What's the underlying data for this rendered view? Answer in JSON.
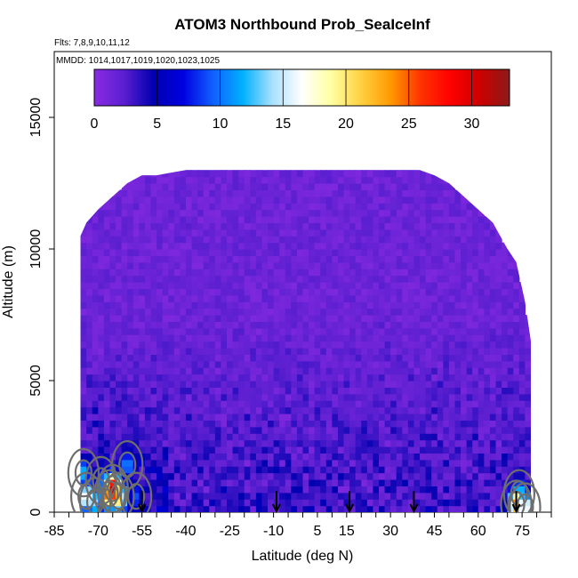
{
  "chart_data": {
    "type": "heatmap",
    "title": "ATOM3 Northbound Prob_SeaIceInf",
    "notes": [
      "Flts: 7,8,9,10,11,12",
      "MMDD: 1014,1017,1019,1020,1023,1025"
    ],
    "xlabel": "Latitude (deg N)",
    "ylabel": "Altitude (m)",
    "xlim": [
      -85,
      85
    ],
    "ylim": [
      0,
      17500
    ],
    "x_ticks": [
      -85,
      -80,
      -75,
      -70,
      -65,
      -60,
      -55,
      -50,
      -45,
      -40,
      -35,
      -30,
      -25,
      -20,
      -15,
      -10,
      -5,
      0,
      5,
      10,
      15,
      20,
      25,
      30,
      35,
      40,
      45,
      50,
      55,
      60,
      65,
      70,
      75,
      80,
      85
    ],
    "x_tick_labels": [
      "-85",
      "-70",
      "-55",
      "-40",
      "-25",
      "-10",
      "5",
      "15",
      "30",
      "45",
      "60",
      "75"
    ],
    "x_tick_label_values": [
      -85,
      -70,
      -55,
      -40,
      -25,
      -10,
      5,
      15,
      30,
      45,
      60,
      75
    ],
    "y_ticks": [
      0,
      5000,
      10000,
      15000
    ],
    "y_tick_labels": [
      "0",
      "5000",
      "10000",
      "15000"
    ],
    "colorbar": {
      "range": [
        0,
        33
      ],
      "ticks": [
        0,
        5,
        10,
        15,
        20,
        25,
        30
      ],
      "tick_labels": [
        "0",
        "5",
        "10",
        "15",
        "20",
        "25",
        "30"
      ],
      "colors": [
        "#8a2be2",
        "#5a1fd0",
        "#0000b0",
        "#0000e0",
        "#1060ff",
        "#00b0ff",
        "#a8e0ff",
        "#ffffff",
        "#ffffa0",
        "#ffd040",
        "#ff9900",
        "#ff3300",
        "#ff0000",
        "#cc0000",
        "#8b1a1a"
      ]
    },
    "coverage_top_m": [
      [
        -76,
        10500
      ],
      [
        -74,
        11000
      ],
      [
        -70,
        11500
      ],
      [
        -65,
        12000
      ],
      [
        -60,
        12500
      ],
      [
        -55,
        12800
      ],
      [
        -50,
        12800
      ],
      [
        -45,
        12900
      ],
      [
        -40,
        13000
      ],
      [
        -30,
        13000
      ],
      [
        -20,
        13000
      ],
      [
        -10,
        13000
      ],
      [
        0,
        13000
      ],
      [
        10,
        13000
      ],
      [
        20,
        13000
      ],
      [
        30,
        13000
      ],
      [
        40,
        13000
      ],
      [
        45,
        12800
      ],
      [
        50,
        12500
      ],
      [
        55,
        12000
      ],
      [
        60,
        11500
      ],
      [
        65,
        11000
      ],
      [
        70,
        10000
      ],
      [
        73,
        9500
      ],
      [
        76,
        8000
      ],
      [
        78,
        6500
      ]
    ],
    "high_values": [
      {
        "lat": -75,
        "alt": 1500,
        "value": 12
      },
      {
        "lat": -74,
        "alt": 600,
        "value": 18
      },
      {
        "lat": -71,
        "alt": 400,
        "value": 14
      },
      {
        "lat": -69,
        "alt": 1200,
        "value": 10
      },
      {
        "lat": -66,
        "alt": 700,
        "value": 27
      },
      {
        "lat": -65,
        "alt": 900,
        "value": 31
      },
      {
        "lat": -63,
        "alt": 600,
        "value": 22
      },
      {
        "lat": -60,
        "alt": 1800,
        "value": 11
      },
      {
        "lat": -57,
        "alt": 600,
        "value": 9
      },
      {
        "lat": 73,
        "alt": 300,
        "value": 24
      },
      {
        "lat": 74,
        "alt": 700,
        "value": 14
      },
      {
        "lat": 76,
        "alt": 200,
        "value": 18
      }
    ],
    "arrows_lat": [
      -55,
      -9,
      16,
      38,
      73
    ]
  }
}
